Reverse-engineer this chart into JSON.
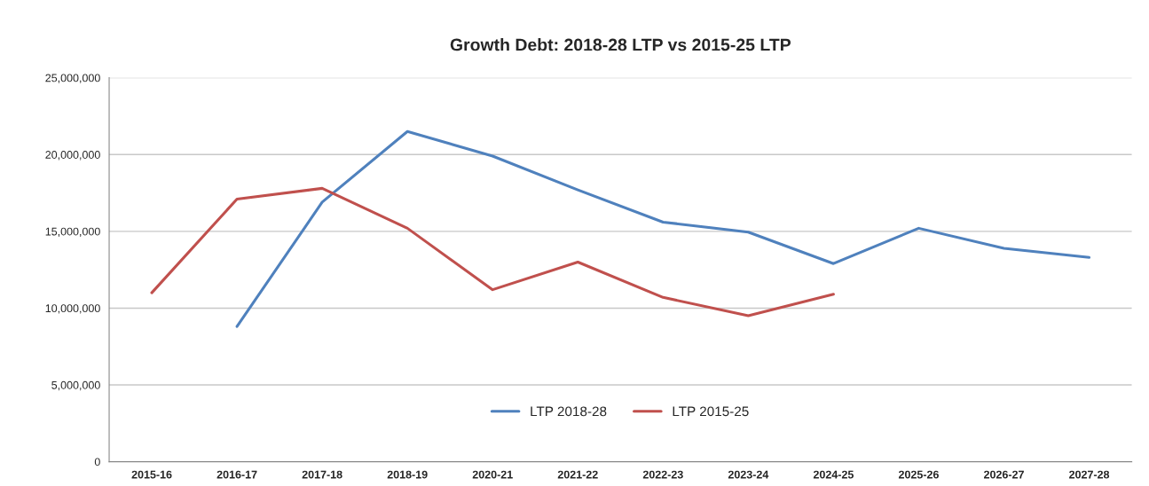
{
  "chart_data": {
    "type": "line",
    "title": "Growth Debt: 2018-28 LTP vs 2015-25 LTP",
    "categories": [
      "2015-16",
      "2016-17",
      "2017-18",
      "2018-19",
      "2020-21",
      "2021-22",
      "2022-23",
      "2023-24",
      "2024-25",
      "2025-26",
      "2026-27",
      "2027-28"
    ],
    "series": [
      {
        "name": "LTP 2018-28",
        "color": "#4f81bd",
        "values": [
          null,
          8800000,
          16900000,
          21500000,
          19900000,
          17700000,
          15600000,
          14950000,
          12900000,
          15200000,
          13900000,
          13300000
        ]
      },
      {
        "name": "LTP 2015-25",
        "color": "#c0504d",
        "values": [
          11000000,
          17100000,
          17800000,
          15200000,
          11200000,
          13000000,
          10700000,
          9500000,
          10900000,
          null,
          null,
          null
        ]
      }
    ],
    "ylim": [
      0,
      25000000
    ],
    "yticks": [
      {
        "value": 0,
        "label": "0"
      },
      {
        "value": 5000000,
        "label": "5,000,000"
      },
      {
        "value": 10000000,
        "label": "10,000,000"
      },
      {
        "value": 15000000,
        "label": "15,000,000"
      },
      {
        "value": 20000000,
        "label": "20,000,000"
      },
      {
        "value": 25000000,
        "label": "25,000,000"
      }
    ],
    "grid": "y",
    "legend": "bottom",
    "marker": "none",
    "line_style": "solid"
  }
}
